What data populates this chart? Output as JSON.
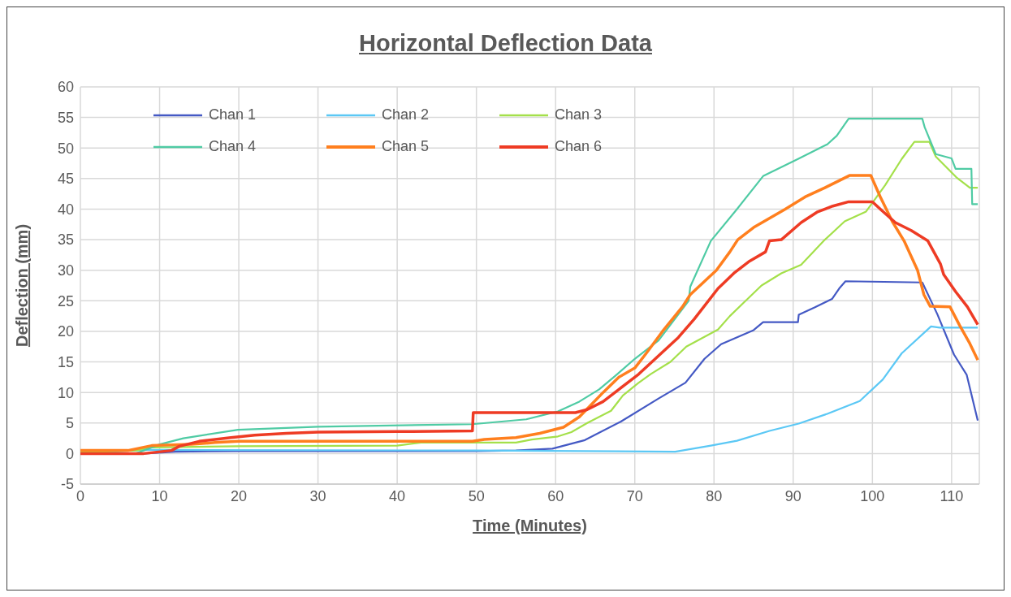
{
  "chart_data": {
    "type": "line",
    "title": "Horizontal Deflection Data",
    "xlabel": "Time (Minutes)",
    "ylabel": "Deflection (mm)",
    "xlim": [
      0,
      113.5
    ],
    "xticks": [
      0,
      10,
      20,
      30,
      40,
      50,
      60,
      70,
      80,
      90,
      100,
      110
    ],
    "ylim": [
      -5,
      60
    ],
    "yticks": [
      -5,
      0,
      5,
      10,
      15,
      20,
      25,
      30,
      35,
      40,
      45,
      50,
      55,
      60
    ],
    "grid": true,
    "legend": "top",
    "marker": "none",
    "line_style": "solid",
    "series": [
      {
        "name": "Chan 1",
        "color": "#4459c4",
        "x": [
          0,
          8,
          12,
          20,
          50,
          55,
          59.6,
          63.7,
          68.2,
          73,
          76.4,
          78.8,
          80.9,
          85,
          86.2,
          90.6,
          90.7,
          92.7,
          94.9,
          95.8,
          96.6,
          106.3,
          108.2,
          110.3,
          111.9,
          113.3
        ],
        "values": [
          0,
          0,
          0.3,
          0.4,
          0.4,
          0.5,
          0.8,
          2.2,
          5.2,
          9,
          11.6,
          15.5,
          17.9,
          20.2,
          21.5,
          21.5,
          22.7,
          23.9,
          25.3,
          27,
          28.2,
          28,
          22.8,
          16.2,
          12.9,
          5.4
        ]
      },
      {
        "name": "Chan 2",
        "color": "#5bc8f5",
        "x": [
          0,
          8,
          50,
          75.1,
          79.6,
          82.9,
          87,
          90.7,
          94.3,
          98.4,
          101.3,
          103.7,
          107.4,
          108.5,
          113.3
        ],
        "values": [
          0,
          0.6,
          0.5,
          0.3,
          1.3,
          2.1,
          3.7,
          4.9,
          6.5,
          8.6,
          12.1,
          16.4,
          20.8,
          20.6,
          20.6
        ]
      },
      {
        "name": "Chan 3",
        "color": "#a4e04a",
        "x": [
          0,
          7,
          9,
          20,
          40,
          43,
          55,
          57,
          60.3,
          62,
          64,
          67,
          68.5,
          70.4,
          72,
          74.5,
          76.5,
          80.5,
          82,
          84,
          86,
          88.5,
          91,
          94,
          96.5,
          99.2,
          101.6,
          103.7,
          105.3,
          107.2,
          108,
          110.6,
          112.3,
          113.3
        ],
        "values": [
          0.2,
          0.5,
          1,
          1.2,
          1.3,
          1.8,
          1.8,
          2.3,
          2.8,
          3.5,
          5,
          7,
          9.5,
          11.5,
          13,
          15,
          17.5,
          20.3,
          22.5,
          25,
          27.5,
          29.5,
          30.9,
          35,
          38,
          39.6,
          43.9,
          48.2,
          51,
          51,
          48.6,
          45.2,
          43.5,
          43.5
        ]
      },
      {
        "name": "Chan 4",
        "color": "#4fcba4",
        "x": [
          0,
          7,
          10,
          13,
          19.9,
          30,
          49.5,
          56.3,
          60.3,
          63,
          65.5,
          67.7,
          70,
          73,
          76.8,
          77,
          79.6,
          82.9,
          86.2,
          90.6,
          94.3,
          95.5,
          97,
          106.3,
          106.6,
          108,
          110,
          110.5,
          112.5,
          112.6,
          113.3
        ],
        "values": [
          0,
          0,
          1.5,
          2.5,
          3.9,
          4.4,
          4.8,
          5.6,
          6.9,
          8.5,
          10.5,
          12.9,
          15.5,
          18.5,
          25,
          27.3,
          34.8,
          40,
          45.4,
          48.2,
          50.6,
          52,
          54.8,
          54.8,
          53.4,
          49,
          48.3,
          46.6,
          46.6,
          40.8,
          40.8
        ]
      },
      {
        "name": "Chan 5",
        "color": "#ff7f1e",
        "x": [
          0,
          6,
          9,
          14,
          17,
          20,
          49.5,
          51,
          55,
          58,
          61,
          63,
          64.5,
          66,
          68,
          70,
          71.5,
          73.5,
          76,
          77,
          80.3,
          82,
          83,
          85,
          87,
          89,
          91.5,
          94,
          97.1,
          99.8,
          101,
          102.5,
          104,
          105.7,
          106.5,
          107.3,
          109.8,
          111,
          112.3,
          113.3
        ],
        "values": [
          0.5,
          0.5,
          1.3,
          1.5,
          1.8,
          2,
          2,
          2.3,
          2.6,
          3.3,
          4.3,
          6,
          8,
          10,
          12.5,
          14,
          16.5,
          20,
          24,
          26,
          30,
          33,
          35,
          37,
          38.5,
          40,
          42,
          43.5,
          45.5,
          45.5,
          42,
          38,
          34.8,
          30,
          26,
          24.1,
          24,
          21,
          18,
          15.3
        ]
      },
      {
        "name": "Chan 6",
        "color": "#ee3b24",
        "x": [
          0,
          8,
          11.5,
          12.5,
          15,
          19,
          22,
          26,
          30,
          40,
          49.5,
          49.6,
          62.5,
          64,
          66,
          68,
          70.5,
          73,
          75.5,
          77.5,
          80.5,
          82.5,
          84.5,
          86.5,
          87,
          88.5,
          91,
          93,
          95,
          97,
          100,
          101,
          102.9,
          104.9,
          107,
          108.6,
          109,
          110.5,
          112,
          113.3
        ],
        "values": [
          0,
          0,
          0.5,
          1.2,
          2,
          2.6,
          3,
          3.3,
          3.5,
          3.6,
          3.7,
          6.7,
          6.7,
          7.2,
          8.5,
          10.5,
          13,
          16,
          19,
          22,
          27,
          29.5,
          31.5,
          33,
          34.8,
          35,
          37.8,
          39.5,
          40.5,
          41.2,
          41.2,
          40,
          37.8,
          36.5,
          34.8,
          31,
          29.3,
          26.5,
          24,
          21.1
        ]
      }
    ]
  }
}
